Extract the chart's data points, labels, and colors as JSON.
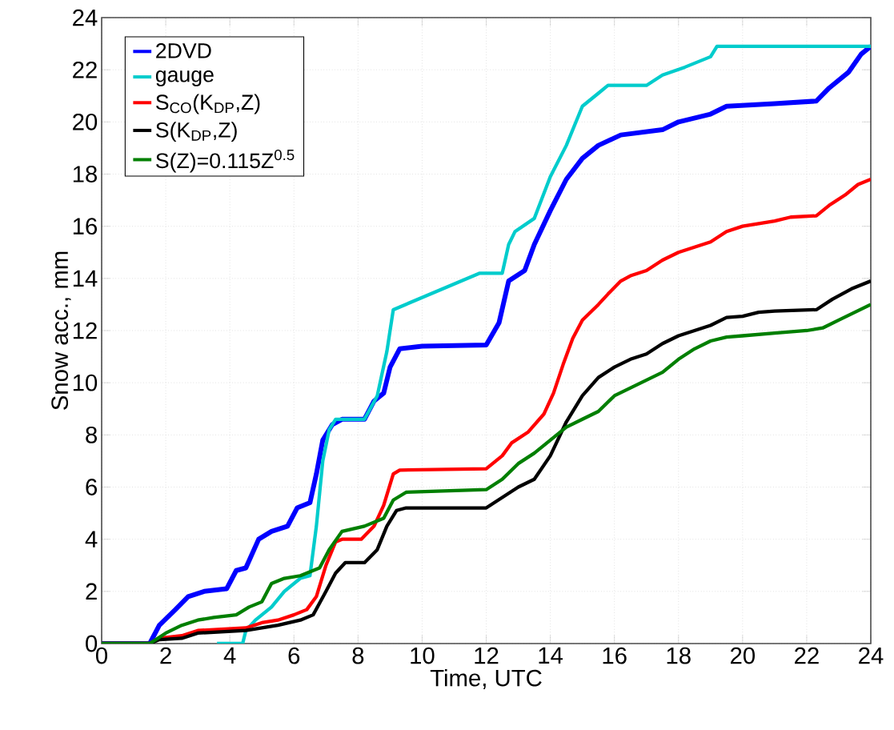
{
  "chart_data": {
    "type": "line",
    "xlabel": "Time, UTC",
    "ylabel": "Snow acc., mm",
    "xlim": [
      0,
      24
    ],
    "ylim": [
      0,
      24
    ],
    "xticks": [
      0,
      2,
      4,
      6,
      8,
      10,
      12,
      14,
      16,
      18,
      20,
      22,
      24
    ],
    "yticks": [
      0,
      2,
      4,
      6,
      8,
      10,
      12,
      14,
      16,
      18,
      20,
      22,
      24
    ],
    "grid": true,
    "legend": "top left",
    "marker": "none",
    "line_style": "solid",
    "series": [
      {
        "name": "2DVD",
        "color": "#0000ff",
        "x": [
          0,
          1.5,
          1.8,
          2.3,
          2.7,
          3.2,
          3.9,
          4.2,
          4.5,
          4.9,
          5.3,
          5.8,
          6.1,
          6.5,
          6.7,
          6.9,
          7.2,
          7.5,
          8.2,
          8.5,
          8.8,
          9.0,
          9.3,
          10,
          12,
          12.4,
          12.7,
          13.2,
          13.5,
          14,
          14.5,
          15.0,
          15.5,
          16.2,
          17.5,
          18,
          19,
          19.5,
          21,
          22.3,
          22.7,
          23.3,
          23.7,
          24
        ],
        "values": [
          0,
          0,
          0.7,
          1.3,
          1.8,
          2.0,
          2.1,
          2.8,
          2.9,
          4.0,
          4.3,
          4.5,
          5.2,
          5.4,
          6.5,
          7.8,
          8.4,
          8.6,
          8.6,
          9.3,
          9.6,
          10.6,
          11.3,
          11.4,
          11.45,
          12.3,
          13.9,
          14.3,
          15.3,
          16.6,
          17.8,
          18.6,
          19.1,
          19.5,
          19.7,
          20.0,
          20.3,
          20.6,
          20.7,
          20.8,
          21.3,
          21.9,
          22.6,
          22.9
        ]
      },
      {
        "name": "gauge",
        "color": "#00cccc",
        "x": [
          3.6,
          4.4,
          4.5,
          4.8,
          5.3,
          5.7,
          6.2,
          6.5,
          6.7,
          6.9,
          7.1,
          7.3,
          8.2,
          8.6,
          8.9,
          9.1,
          11.8,
          12.5,
          12.7,
          12.9,
          13.5,
          14,
          14.5,
          15,
          15.5,
          15.8,
          17,
          17.5,
          18.2,
          19,
          19.2,
          24
        ],
        "values": [
          0,
          0,
          0.5,
          0.9,
          1.4,
          2.0,
          2.5,
          2.6,
          4.5,
          7.0,
          8.2,
          8.6,
          8.6,
          9.5,
          11.2,
          12.8,
          14.2,
          14.2,
          15.3,
          15.8,
          16.3,
          17.9,
          19.1,
          20.6,
          21.1,
          21.4,
          21.4,
          21.8,
          22.1,
          22.5,
          22.9,
          22.9
        ]
      },
      {
        "name": "S$_{CO}$(K$_{DP}$,Z)",
        "color": "#ff0000",
        "x": [
          0,
          1.5,
          1.8,
          2.5,
          3.0,
          4.5,
          5,
          5.5,
          6,
          6.4,
          6.7,
          7.0,
          7.3,
          7.5,
          8.1,
          8.5,
          8.8,
          9.1,
          9.3,
          12,
          12.5,
          12.8,
          13.3,
          13.8,
          14.1,
          14.4,
          14.7,
          15.0,
          15.5,
          15.8,
          16.2,
          16.5,
          17,
          17.5,
          18,
          18.5,
          19,
          19.5,
          20,
          20.5,
          21,
          21.5,
          22.3,
          22.7,
          23.2,
          23.6,
          24
        ],
        "values": [
          0,
          0,
          0.2,
          0.3,
          0.5,
          0.6,
          0.8,
          0.9,
          1.1,
          1.3,
          1.8,
          3.0,
          3.9,
          4.0,
          4.0,
          4.5,
          5.3,
          6.5,
          6.65,
          6.7,
          7.2,
          7.7,
          8.1,
          8.8,
          9.6,
          10.7,
          11.7,
          12.4,
          13.0,
          13.4,
          13.9,
          14.1,
          14.3,
          14.7,
          15.0,
          15.2,
          15.4,
          15.8,
          16.0,
          16.1,
          16.2,
          16.35,
          16.4,
          16.8,
          17.2,
          17.6,
          17.8
        ]
      },
      {
        "name": "S(K$_{DP}$,Z)",
        "color": "#000000",
        "x": [
          0,
          1.5,
          1.8,
          2.5,
          3,
          4.5,
          5.5,
          6.2,
          6.6,
          7.0,
          7.3,
          7.6,
          8.2,
          8.6,
          8.9,
          9.2,
          9.5,
          12,
          12.5,
          13,
          13.5,
          14,
          14.5,
          15,
          15.5,
          16,
          16.5,
          17,
          17.5,
          18,
          18.5,
          19,
          19.5,
          20,
          20.5,
          21,
          22.3,
          22.8,
          23.4,
          24
        ],
        "values": [
          0,
          0,
          0.15,
          0.2,
          0.4,
          0.5,
          0.7,
          0.9,
          1.1,
          2.0,
          2.7,
          3.1,
          3.1,
          3.6,
          4.5,
          5.1,
          5.2,
          5.2,
          5.6,
          6.0,
          6.3,
          7.2,
          8.5,
          9.5,
          10.2,
          10.6,
          10.9,
          11.1,
          11.5,
          11.8,
          12.0,
          12.2,
          12.5,
          12.55,
          12.7,
          12.75,
          12.8,
          13.2,
          13.6,
          13.9
        ]
      },
      {
        "name": "S(Z)=0.115Z$^{0.5}$",
        "color": "#007f00",
        "x": [
          0,
          1.5,
          2,
          2.5,
          3,
          3.5,
          4.2,
          4.6,
          5,
          5.3,
          5.7,
          6.2,
          6.8,
          7.1,
          7.5,
          8.2,
          8.8,
          9.1,
          9.5,
          12,
          12.5,
          13,
          13.5,
          14,
          14.5,
          15,
          15.5,
          16,
          16.5,
          17,
          17.5,
          18,
          18.5,
          19,
          19.5,
          20,
          21,
          22,
          22.5,
          23,
          24
        ],
        "values": [
          0,
          0,
          0.4,
          0.7,
          0.9,
          1.0,
          1.1,
          1.4,
          1.6,
          2.3,
          2.5,
          2.6,
          2.9,
          3.6,
          4.3,
          4.5,
          4.8,
          5.5,
          5.8,
          5.9,
          6.3,
          6.9,
          7.3,
          7.8,
          8.3,
          8.6,
          8.9,
          9.5,
          9.8,
          10.1,
          10.4,
          10.9,
          11.3,
          11.6,
          11.75,
          11.8,
          11.9,
          12.0,
          12.1,
          12.4,
          13.0
        ]
      }
    ]
  }
}
